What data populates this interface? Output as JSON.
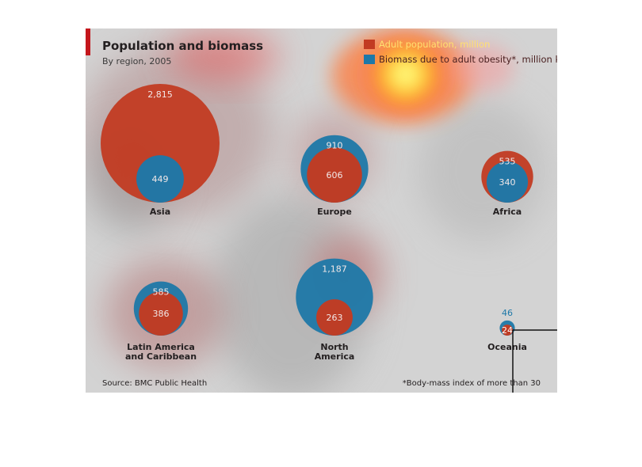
{
  "chart_data": {
    "type": "bubble",
    "title": "Population and biomass",
    "subtitle": "By region, 2005",
    "legend": {
      "placement": "top-right",
      "entries": [
        {
          "label": "Adult population, million",
          "color": "#c23b22"
        },
        {
          "label": "Biomass due to adult obesity*, million kg",
          "color": "#1e78a8"
        }
      ]
    },
    "series": [
      {
        "name": "Adult population, million",
        "color": "#c23b22",
        "values": [
          2815,
          606,
          535,
          386,
          263,
          24
        ],
        "labels": [
          "2,815",
          "606",
          "535",
          "386",
          "263",
          "24"
        ]
      },
      {
        "name": "Biomass due to adult obesity*, million kg",
        "color": "#1e78a8",
        "values": [
          449,
          910,
          340,
          585,
          1187,
          46
        ],
        "labels": [
          "449",
          "910",
          "340",
          "585",
          "1,187",
          "46"
        ]
      }
    ],
    "categories": [
      "Asia",
      "Europe",
      "Africa",
      "Latin America and Caribbean",
      "North America",
      "Oceania"
    ],
    "category_lines": [
      [
        "Asia"
      ],
      [
        "Europe"
      ],
      [
        "Africa"
      ],
      [
        "Latin America",
        "and Caribbean"
      ],
      [
        "North",
        "America"
      ],
      [
        "Oceania"
      ]
    ],
    "source": "Source: BMC Public Health",
    "footnote": "*Body-mass index of more than 30"
  }
}
